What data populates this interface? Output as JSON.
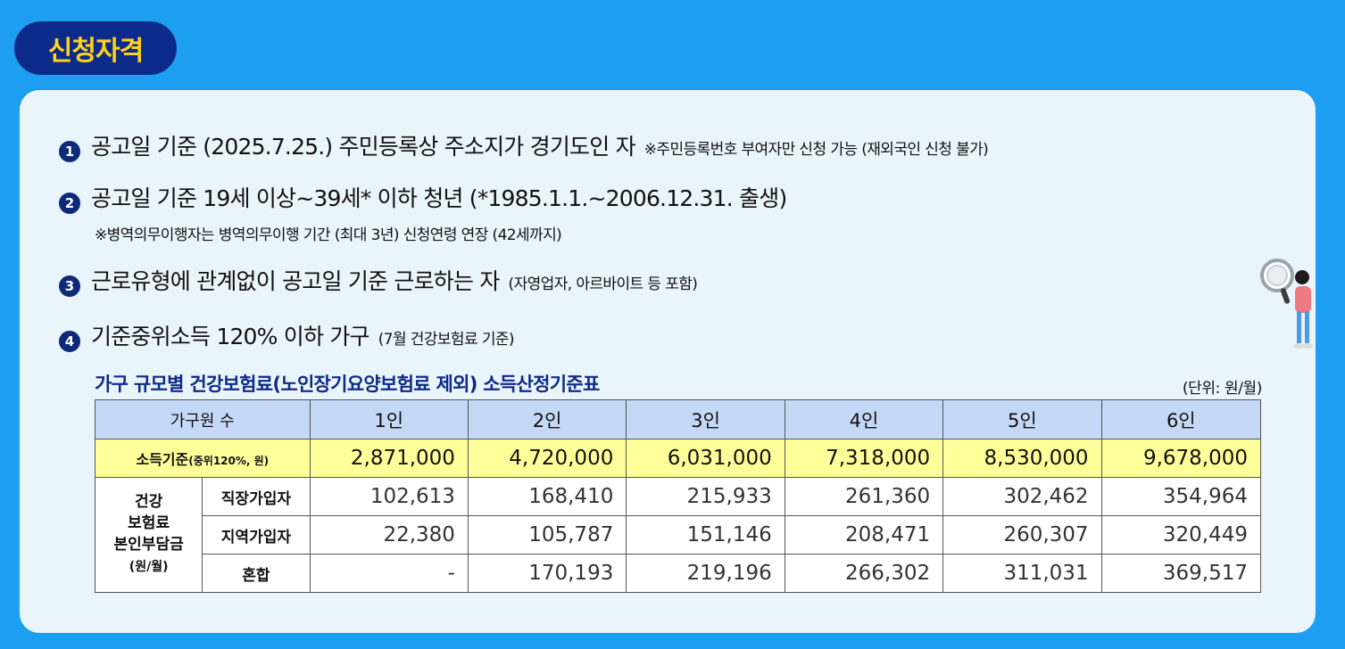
{
  "badge": "신청자격",
  "items": [
    {
      "num": "1",
      "main": "공고일 기준 (2025.7.25.) 주민등록상 주소지가 경기도인 자",
      "note": "※주민등록번호 부여자만 신청 가능 (재외국인 신청 불가)"
    },
    {
      "num": "2",
      "main": "공고일 기준 19세 이상~39세* 이하 청년 (*1985.1.1.~2006.12.31. 출생)",
      "sub": "※병역의무이행자는 병역의무이행 기간 (최대 3년) 신청연령 연장 (42세까지)"
    },
    {
      "num": "3",
      "main": "근로유형에 관계없이 공고일 기준 근로하는 자",
      "note": "(자영업자, 아르바이트 등 포함)"
    },
    {
      "num": "4",
      "main": "기준중위소득 120% 이하 가구",
      "note": "(7월 건강보험료 기준)"
    }
  ],
  "table": {
    "title": "가구 규모별 건강보험료(노인장기요양보험료 제외) 소득산정기준표",
    "unit": "(단위: 원/월)",
    "header_first": "가구원 수",
    "columns": [
      "1인",
      "2인",
      "3인",
      "4인",
      "5인",
      "6인"
    ],
    "income": {
      "label": "소득기준",
      "label_small": "(중위120%, 원)",
      "values": [
        "2,871,000",
        "4,720,000",
        "6,031,000",
        "7,318,000",
        "8,530,000",
        "9,678,000"
      ]
    },
    "premium": {
      "group_line1": "건강",
      "group_line2": "보험료",
      "group_line3": "본인부담금",
      "group_line4": "(원/월)",
      "rows": [
        {
          "label": "직장가입자",
          "values": [
            "102,613",
            "168,410",
            "215,933",
            "261,360",
            "302,462",
            "354,964"
          ]
        },
        {
          "label": "지역가입자",
          "values": [
            "22,380",
            "105,787",
            "151,146",
            "208,471",
            "260,307",
            "320,449"
          ]
        },
        {
          "label": "혼합",
          "values": [
            "-",
            "170,193",
            "219,196",
            "266,302",
            "311,031",
            "369,517"
          ]
        }
      ]
    }
  },
  "illustration": "person-with-magnifier-icon",
  "colors": {
    "background": "#1d9ef0",
    "badge": "#0c2a8a",
    "badge_text": "#ffd21c",
    "card": "#eaf4fb",
    "header_row": "#c5d8f5",
    "income_row": "#ffff99"
  }
}
